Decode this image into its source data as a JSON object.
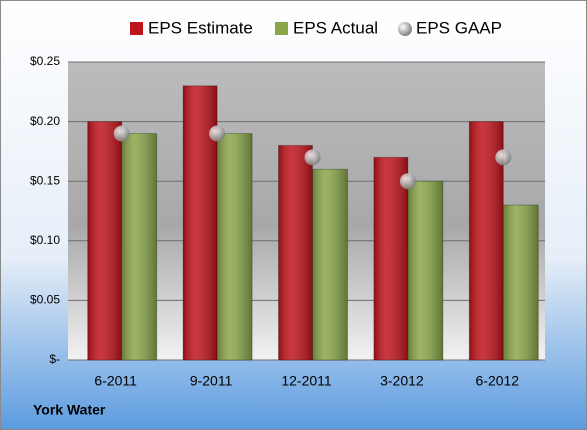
{
  "chart_data": {
    "type": "bar",
    "caption": "York Water",
    "categories": [
      "6-2011",
      "9-2011",
      "12-2011",
      "3-2012",
      "6-2012"
    ],
    "series": [
      {
        "name": "EPS Estimate",
        "type": "bar",
        "color": "#c0141c",
        "values": [
          0.2,
          0.23,
          0.18,
          0.17,
          0.2
        ]
      },
      {
        "name": "EPS Actual",
        "type": "bar",
        "color": "#8aa64a",
        "values": [
          0.19,
          0.19,
          0.16,
          0.15,
          0.13
        ]
      },
      {
        "name": "EPS GAAP",
        "type": "scatter",
        "color": "#b4b4b4",
        "values": [
          0.19,
          0.19,
          0.17,
          0.15,
          0.17
        ]
      }
    ],
    "ylim": [
      0,
      0.25
    ],
    "yticks": [
      {
        "value": 0,
        "label": "$-"
      },
      {
        "value": 0.05,
        "label": "$0.05"
      },
      {
        "value": 0.1,
        "label": "$0.10"
      },
      {
        "value": 0.15,
        "label": "$0.15"
      },
      {
        "value": 0.2,
        "label": "$0.20"
      },
      {
        "value": 0.25,
        "label": "$0.25"
      }
    ],
    "grid": true
  }
}
